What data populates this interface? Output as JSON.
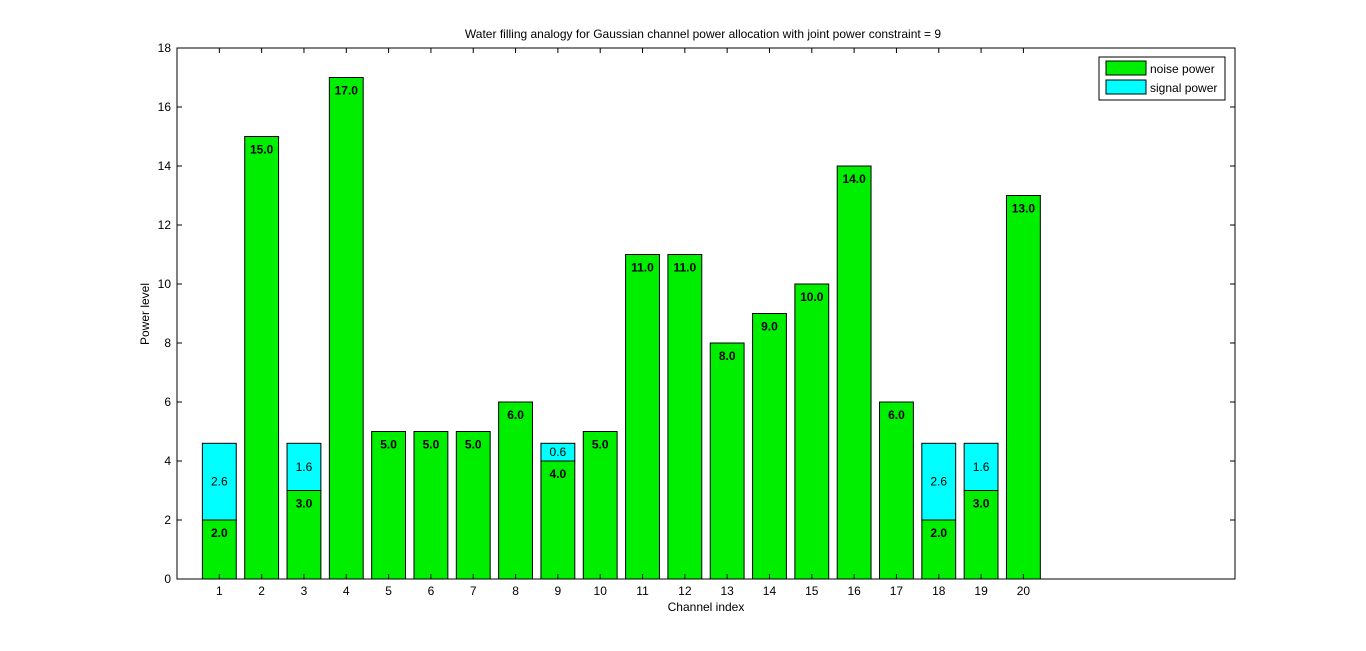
{
  "chart_data": {
    "type": "bar",
    "stacked": true,
    "title": "Water filling analogy for Gaussian channel power allocation with joint power constraint  = 9",
    "xlabel": "Channel index",
    "ylabel": "Power level",
    "categories": [
      "1",
      "2",
      "3",
      "4",
      "5",
      "6",
      "7",
      "8",
      "9",
      "10",
      "11",
      "12",
      "13",
      "14",
      "15",
      "16",
      "17",
      "18",
      "19",
      "20"
    ],
    "xlim": [
      0,
      25
    ],
    "ylim": [
      0,
      18
    ],
    "yticks": [
      0,
      2,
      4,
      6,
      8,
      10,
      12,
      14,
      16,
      18
    ],
    "grid": false,
    "legend_position": "top-right",
    "series": [
      {
        "name": "noise power",
        "color": "#00ee00",
        "values": [
          2,
          15,
          3,
          17,
          5,
          5,
          5,
          6,
          4,
          5,
          11,
          11,
          8,
          9,
          10,
          14,
          6,
          2,
          3,
          13
        ],
        "labels": [
          "2.0",
          "15.0",
          "3.0",
          "17.0",
          "5.0",
          "5.0",
          "5.0",
          "6.0",
          "4.0",
          "5.0",
          "11.0",
          "11.0",
          "8.0",
          "9.0",
          "10.0",
          "14.0",
          "6.0",
          "2.0",
          "3.0",
          "13.0"
        ]
      },
      {
        "name": "signal power",
        "color": "#00ffff",
        "values": [
          2.6,
          0,
          1.6,
          0,
          0,
          0,
          0,
          0,
          0.6,
          0,
          0,
          0,
          0,
          0,
          0,
          0,
          0,
          2.6,
          1.6,
          0
        ],
        "labels": [
          "2.6",
          "",
          "1.6",
          "",
          "",
          "",
          "",
          "",
          "0.6",
          "",
          "",
          "",
          "",
          "",
          "",
          "",
          "",
          "2.6",
          "1.6",
          ""
        ]
      }
    ]
  }
}
